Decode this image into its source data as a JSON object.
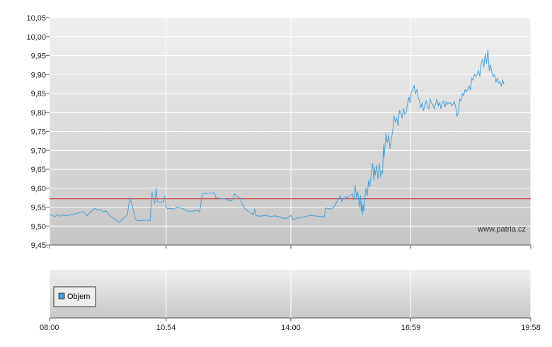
{
  "chart_data": [
    {
      "type": "line",
      "title": "",
      "xlabel": "",
      "ylabel": "",
      "ylim": [
        9.45,
        10.05
      ],
      "y_ticks": [
        "10,05",
        "10,00",
        "9,95",
        "9,90",
        "9,85",
        "9,80",
        "9,75",
        "9,70",
        "9,65",
        "9,60",
        "9,55",
        "9,50",
        "9,45"
      ],
      "y_tick_values": [
        10.05,
        10.0,
        9.95,
        9.9,
        9.85,
        9.8,
        9.75,
        9.7,
        9.65,
        9.6,
        9.55,
        9.5,
        9.45
      ],
      "x_ticks": [
        "08:00",
        "10:54",
        "14:00",
        "16:59",
        "19:58"
      ],
      "x_tick_minutes": [
        0,
        174,
        360,
        539,
        718
      ],
      "xlim_minutes": [
        0,
        718
      ],
      "grid": true,
      "reference_line": {
        "value": 9.572,
        "color": "#cc2222"
      },
      "series": [
        {
          "color": "#4aa3d6",
          "points": [
            [
              0,
              9.53
            ],
            [
              4,
              9.528
            ],
            [
              8,
              9.525
            ],
            [
              12,
              9.531
            ],
            [
              16,
              9.526
            ],
            [
              20,
              9.529
            ],
            [
              26,
              9.527
            ],
            [
              32,
              9.53
            ],
            [
              38,
              9.532
            ],
            [
              44,
              9.535
            ],
            [
              50,
              9.538
            ],
            [
              56,
              9.527
            ],
            [
              60,
              9.535
            ],
            [
              64,
              9.541
            ],
            [
              68,
              9.547
            ],
            [
              72,
              9.542
            ],
            [
              76,
              9.544
            ],
            [
              80,
              9.537
            ],
            [
              84,
              9.54
            ],
            [
              88,
              9.531
            ],
            [
              92,
              9.525
            ],
            [
              96,
              9.52
            ],
            [
              100,
              9.514
            ],
            [
              104,
              9.51
            ],
            [
              108,
              9.517
            ],
            [
              112,
              9.523
            ],
            [
              116,
              9.53
            ],
            [
              120,
              9.575
            ],
            [
              124,
              9.55
            ],
            [
              128,
              9.52
            ],
            [
              132,
              9.514
            ],
            [
              138,
              9.515
            ],
            [
              144,
              9.516
            ],
            [
              150,
              9.514
            ],
            [
              153,
              9.59
            ],
            [
              155,
              9.57
            ],
            [
              157,
              9.56
            ],
            [
              159,
              9.6
            ],
            [
              161,
              9.565
            ],
            [
              165,
              9.563
            ],
            [
              170,
              9.565
            ],
            [
              172,
              9.58
            ],
            [
              174,
              9.55
            ],
            [
              176,
              9.546
            ],
            [
              180,
              9.547
            ],
            [
              185,
              9.545
            ],
            [
              190,
              9.55
            ],
            [
              195,
              9.548
            ],
            [
              200,
              9.545
            ],
            [
              205,
              9.54
            ],
            [
              210,
              9.539
            ],
            [
              215,
              9.54
            ],
            [
              220,
              9.541
            ],
            [
              224,
              9.538
            ],
            [
              228,
              9.585
            ],
            [
              234,
              9.586
            ],
            [
              240,
              9.587
            ],
            [
              246,
              9.588
            ],
            [
              248,
              9.575
            ],
            [
              252,
              9.574
            ],
            [
              256,
              9.572
            ],
            [
              260,
              9.573
            ],
            [
              264,
              9.57
            ],
            [
              268,
              9.568
            ],
            [
              272,
              9.566
            ],
            [
              276,
              9.585
            ],
            [
              280,
              9.578
            ],
            [
              284,
              9.575
            ],
            [
              288,
              9.555
            ],
            [
              292,
              9.545
            ],
            [
              296,
              9.54
            ],
            [
              300,
              9.535
            ],
            [
              304,
              9.53
            ],
            [
              306,
              9.545
            ],
            [
              308,
              9.528
            ],
            [
              312,
              9.526
            ],
            [
              318,
              9.527
            ],
            [
              324,
              9.528
            ],
            [
              330,
              9.525
            ],
            [
              336,
              9.527
            ],
            [
              342,
              9.525
            ],
            [
              348,
              9.521
            ],
            [
              354,
              9.52
            ],
            [
              360,
              9.528
            ],
            [
              362,
              9.521
            ],
            [
              364,
              9.517
            ],
            [
              370,
              9.521
            ],
            [
              376,
              9.523
            ],
            [
              382,
              9.525
            ],
            [
              388,
              9.528
            ],
            [
              394,
              9.527
            ],
            [
              400,
              9.526
            ],
            [
              406,
              9.525
            ],
            [
              410,
              9.524
            ],
            [
              412,
              9.548
            ],
            [
              416,
              9.546
            ],
            [
              420,
              9.545
            ],
            [
              424,
              9.55
            ],
            [
              428,
              9.562
            ],
            [
              432,
              9.575
            ],
            [
              434,
              9.58
            ],
            [
              436,
              9.565
            ],
            [
              438,
              9.574
            ],
            [
              440,
              9.572
            ],
            [
              442,
              9.578
            ],
            [
              444,
              9.575
            ],
            [
              448,
              9.58
            ],
            [
              452,
              9.585
            ],
            [
              454,
              9.57
            ],
            [
              456,
              9.608
            ],
            [
              458,
              9.575
            ],
            [
              460,
              9.59
            ],
            [
              462,
              9.55
            ],
            [
              464,
              9.58
            ],
            [
              465,
              9.54
            ],
            [
              466,
              9.565
            ],
            [
              467,
              9.53
            ],
            [
              468,
              9.555
            ],
            [
              469,
              9.54
            ],
            [
              471,
              9.585
            ],
            [
              472,
              9.6
            ],
            [
              474,
              9.58
            ],
            [
              476,
              9.62
            ],
            [
              478,
              9.605
            ],
            [
              480,
              9.64
            ],
            [
              482,
              9.665
            ],
            [
              484,
              9.62
            ],
            [
              485,
              9.655
            ],
            [
              486,
              9.635
            ],
            [
              488,
              9.66
            ],
            [
              490,
              9.625
            ],
            [
              492,
              9.665
            ],
            [
              494,
              9.63
            ],
            [
              496,
              9.645
            ],
            [
              497,
              9.64
            ],
            [
              498,
              9.715
            ],
            [
              499,
              9.68
            ],
            [
              500,
              9.7
            ],
            [
              502,
              9.745
            ],
            [
              504,
              9.72
            ],
            [
              506,
              9.74
            ],
            [
              508,
              9.705
            ],
            [
              510,
              9.73
            ],
            [
              512,
              9.75
            ],
            [
              514,
              9.79
            ],
            [
              516,
              9.775
            ],
            [
              518,
              9.785
            ],
            [
              520,
              9.765
            ],
            [
              522,
              9.805
            ],
            [
              524,
              9.8
            ],
            [
              526,
              9.785
            ],
            [
              528,
              9.81
            ],
            [
              530,
              9.795
            ],
            [
              532,
              9.8
            ],
            [
              534,
              9.82
            ],
            [
              536,
              9.84
            ],
            [
              538,
              9.825
            ],
            [
              540,
              9.855
            ],
            [
              542,
              9.86
            ],
            [
              544,
              9.87
            ],
            [
              546,
              9.85
            ],
            [
              548,
              9.86
            ],
            [
              550,
              9.84
            ],
            [
              552,
              9.83
            ],
            [
              554,
              9.812
            ],
            [
              556,
              9.825
            ],
            [
              558,
              9.805
            ],
            [
              560,
              9.82
            ],
            [
              562,
              9.83
            ],
            [
              564,
              9.815
            ],
            [
              566,
              9.81
            ],
            [
              568,
              9.835
            ],
            [
              570,
              9.825
            ],
            [
              572,
              9.82
            ],
            [
              574,
              9.81
            ],
            [
              576,
              9.822
            ],
            [
              578,
              9.835
            ],
            [
              580,
              9.818
            ],
            [
              582,
              9.826
            ],
            [
              584,
              9.81
            ],
            [
              586,
              9.825
            ],
            [
              588,
              9.83
            ],
            [
              590,
              9.815
            ],
            [
              592,
              9.828
            ],
            [
              594,
              9.822
            ],
            [
              596,
              9.825
            ],
            [
              598,
              9.826
            ],
            [
              600,
              9.818
            ],
            [
              602,
              9.822
            ],
            [
              604,
              9.828
            ],
            [
              606,
              9.815
            ],
            [
              608,
              9.79
            ],
            [
              610,
              9.8
            ],
            [
              612,
              9.835
            ],
            [
              614,
              9.83
            ],
            [
              616,
              9.85
            ],
            [
              618,
              9.845
            ],
            [
              620,
              9.86
            ],
            [
              622,
              9.855
            ],
            [
              624,
              9.86
            ],
            [
              626,
              9.87
            ],
            [
              628,
              9.86
            ],
            [
              630,
              9.89
            ],
            [
              632,
              9.885
            ],
            [
              634,
              9.9
            ],
            [
              636,
              9.895
            ],
            [
              638,
              9.9
            ],
            [
              640,
              9.91
            ],
            [
              642,
              9.895
            ],
            [
              644,
              9.93
            ],
            [
              646,
              9.94
            ],
            [
              648,
              9.92
            ],
            [
              650,
              9.955
            ],
            [
              652,
              9.93
            ],
            [
              654,
              9.965
            ],
            [
              656,
              9.91
            ],
            [
              658,
              9.925
            ],
            [
              660,
              9.905
            ],
            [
              662,
              9.895
            ],
            [
              664,
              9.9
            ],
            [
              666,
              9.88
            ],
            [
              668,
              9.89
            ],
            [
              670,
              9.878
            ],
            [
              672,
              9.88
            ],
            [
              674,
              9.87
            ],
            [
              676,
              9.885
            ],
            [
              678,
              9.875
            ]
          ]
        }
      ]
    },
    {
      "type": "bar",
      "title": "",
      "xlabel": "",
      "ylabel": "",
      "x_ticks": [
        "08:00",
        "10:54",
        "14:00",
        "16:59",
        "19:58"
      ],
      "grid": true,
      "series": [
        {
          "name": "Objem",
          "color": "#4aa3d6",
          "values": []
        }
      ]
    }
  ],
  "watermark": "www.patria.cz"
}
